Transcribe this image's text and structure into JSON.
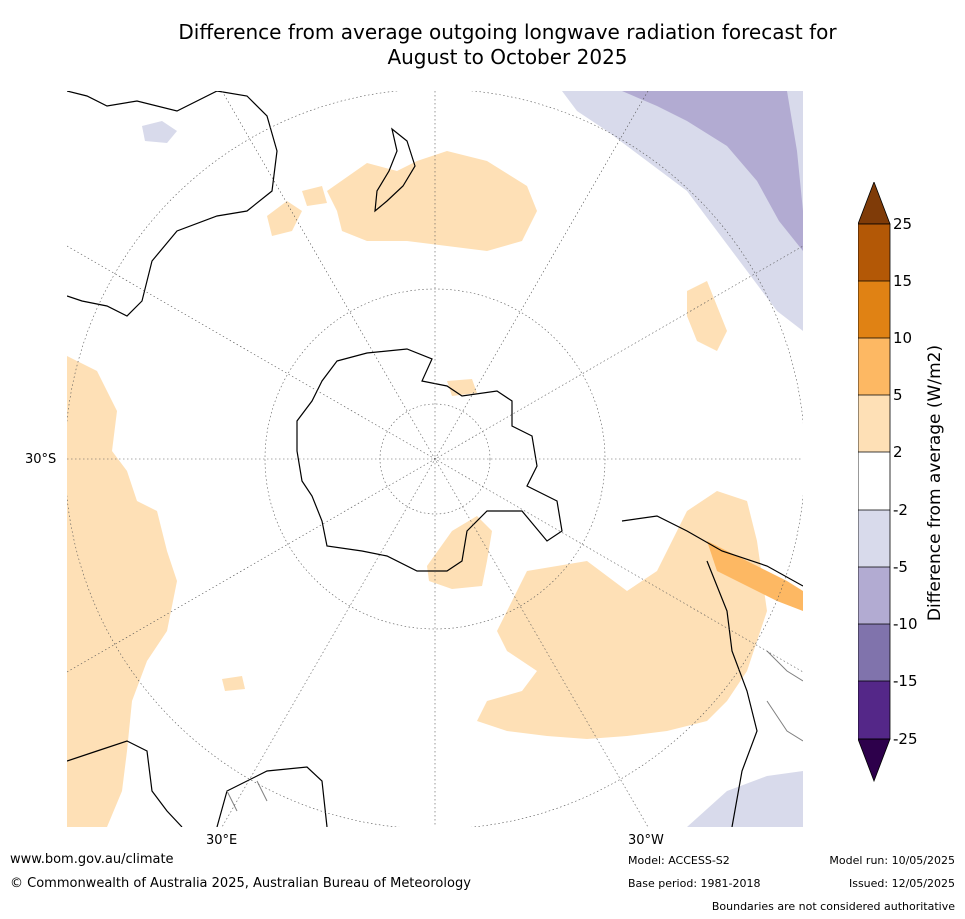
{
  "title": {
    "line1": "Difference from average outgoing longwave radiation forecast for",
    "line2": "August to October 2025"
  },
  "map": {
    "lat_label": "30°S",
    "lon_labels": [
      "30°E",
      "30°W"
    ]
  },
  "colorbar": {
    "label": "Difference from average (W/m2)",
    "ticks": [
      "25",
      "15",
      "10",
      "5",
      "2",
      "-2",
      "-5",
      "-10",
      "-15",
      "-25"
    ],
    "colors": {
      "above_25": "#7f3b08",
      "15_25": "#b35806",
      "10_15": "#e08214",
      "5_10": "#fdb863",
      "2_5": "#fee0b6",
      "neutral": "#ffffff",
      "m5_m2": "#d8daeb",
      "m10_m5": "#b2abd2",
      "m15_m10": "#8073ac",
      "m25_m15": "#542788",
      "below_m25": "#2d004b"
    }
  },
  "footer": {
    "website": "www.bom.gov.au/climate",
    "copyright": "© Commonwealth of Australia 2025, Australian Bureau of Meteorology",
    "model": "Model: ACCESS-S2",
    "base_period": "Base period: 1981-2018",
    "model_run": "Model run: 10/05/2025",
    "issued": "Issued: 12/05/2025",
    "disclaimer": "Boundaries are not considered authoritative"
  }
}
